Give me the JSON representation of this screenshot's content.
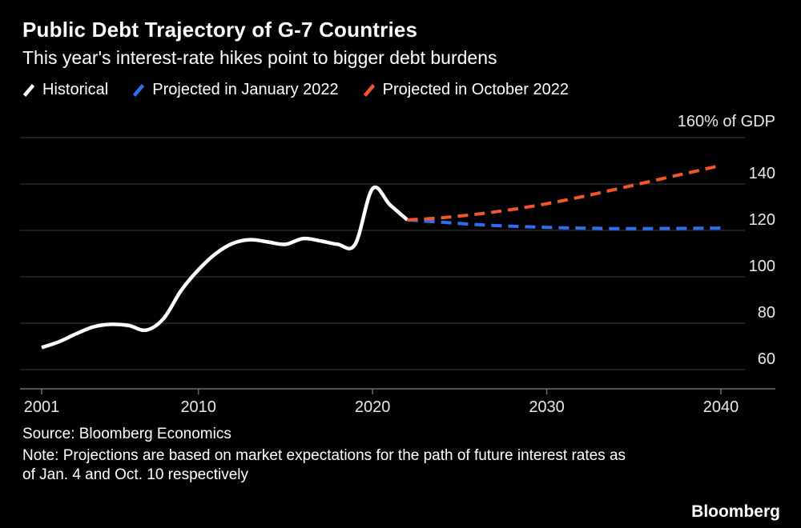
{
  "header": {
    "title": "Public Debt Trajectory of G-7 Countries",
    "subtitle": "This year's interest-rate hikes point to bigger debt burdens"
  },
  "legend": [
    {
      "label": "Historical",
      "color": "#ffffff",
      "dashed": false
    },
    {
      "label": "Projected in January 2022",
      "color": "#2e6ff2",
      "dashed": true
    },
    {
      "label": "Projected in October 2022",
      "color": "#f4552d",
      "dashed": true
    }
  ],
  "footer": {
    "source": "Source: Bloomberg Economics",
    "note": "Note: Projections are based on market expectations for the path of future interest rates as of Jan. 4 and Oct. 10 respectively",
    "brand": "Bloomberg"
  },
  "theme": {
    "background": "#000000",
    "grid": "#3b3b3b",
    "axis": "#6f6f6f",
    "label_text": "#e9e9e9"
  },
  "chart_data": {
    "type": "line",
    "title": "Public Debt Trajectory of G-7 Countries",
    "xlabel": "",
    "ylabel": "% of GDP",
    "unit_top_label": "160% of GDP",
    "x_ticks": [
      2001,
      2010,
      2020,
      2030,
      2040
    ],
    "y_ticks": [
      60,
      80,
      100,
      120,
      140,
      160
    ],
    "xlim": [
      2000,
      2041.5
    ],
    "ylim": [
      52,
      166
    ],
    "grid": "horizontal",
    "legend_position": "top",
    "series": [
      {
        "name": "Historical",
        "color": "#ffffff",
        "style": "solid",
        "x": [
          2001,
          2002,
          2003,
          2004,
          2005,
          2006,
          2007,
          2008,
          2009,
          2010,
          2011,
          2012,
          2013,
          2014,
          2015,
          2016,
          2017,
          2018,
          2019,
          2020,
          2021,
          2022
        ],
        "y": [
          69.5,
          72,
          75.5,
          78.5,
          79.5,
          79,
          77,
          82,
          94,
          103,
          110,
          114.5,
          116,
          115,
          114,
          116.5,
          115.5,
          114,
          114,
          138,
          131,
          124.5
        ]
      },
      {
        "name": "Projected in January 2022",
        "color": "#2e6ff2",
        "style": "dashed",
        "x": [
          2022,
          2024,
          2026,
          2028,
          2030,
          2032,
          2034,
          2036,
          2038,
          2040
        ],
        "y": [
          124.5,
          123.5,
          122.5,
          121.8,
          121.3,
          121,
          120.8,
          120.8,
          120.9,
          121
        ]
      },
      {
        "name": "Projected in October 2022",
        "color": "#f4552d",
        "style": "dashed",
        "x": [
          2022,
          2024,
          2026,
          2028,
          2030,
          2032,
          2034,
          2036,
          2038,
          2040
        ],
        "y": [
          124.5,
          125.5,
          127,
          129,
          131.5,
          134.5,
          137.8,
          141.2,
          144.6,
          148
        ]
      }
    ]
  }
}
